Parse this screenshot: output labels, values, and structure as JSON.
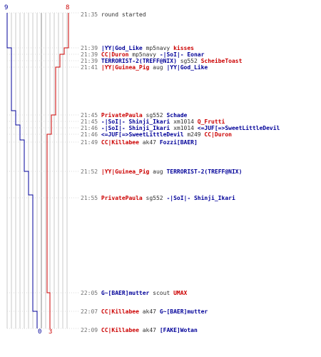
{
  "chart_data": {
    "type": "line",
    "axis": {
      "top_left": "9",
      "top_right": "8",
      "bottom_left": "0",
      "bottom_right": "3"
    },
    "series": [
      {
        "color": "#000099",
        "start": 9,
        "end": 0
      },
      {
        "color": "#cc0000",
        "start": 8,
        "end": 3
      }
    ]
  },
  "events": [
    {
      "time": "21:35",
      "parts": [
        {
          "text": "round started",
          "team": 0
        }
      ]
    },
    {
      "time": "21:39",
      "parts": [
        {
          "text": "|YY|God_Like",
          "team": 2
        },
        {
          "text": " mp5navy ",
          "team": 0
        },
        {
          "text": "kisses",
          "team": 1
        }
      ]
    },
    {
      "time": "21:39",
      "parts": [
        {
          "text": "CC|Duron",
          "team": 1
        },
        {
          "text": " mp5navy ",
          "team": 0
        },
        {
          "text": "-|SoI|- Eonar",
          "team": 2
        }
      ]
    },
    {
      "time": "21:39",
      "parts": [
        {
          "text": "TERRORIST-2(TREFF@NIX)",
          "team": 2
        },
        {
          "text": " sg552 ",
          "team": 0
        },
        {
          "text": "ScheibeToast",
          "team": 1
        }
      ]
    },
    {
      "time": "21:41",
      "parts": [
        {
          "text": "|YY|Guinea_Pig",
          "team": 1
        },
        {
          "text": " aug ",
          "team": 0
        },
        {
          "text": "|YY|God_Like",
          "team": 2
        }
      ]
    },
    {
      "time": "21:45",
      "parts": [
        {
          "text": "PrivatePaula",
          "team": 1
        },
        {
          "text": " sg552 ",
          "team": 0
        },
        {
          "text": "Schade",
          "team": 2
        }
      ]
    },
    {
      "time": "21:45",
      "parts": [
        {
          "text": "-|SoI|- Shinji_Ikari",
          "team": 2
        },
        {
          "text": " xm1014 ",
          "team": 0
        },
        {
          "text": "Q_Frutti",
          "team": 1
        }
      ]
    },
    {
      "time": "21:46",
      "parts": [
        {
          "text": "-|SoI|- Shinji_Ikari",
          "team": 2
        },
        {
          "text": " xm1014 ",
          "team": 0
        },
        {
          "text": "<=JUF[=>SweetLittleDevil",
          "team": 2
        }
      ]
    },
    {
      "time": "21:46",
      "parts": [
        {
          "text": "<=JUF[=>SweetLittleDevil",
          "team": 2
        },
        {
          "text": " m249 ",
          "team": 0
        },
        {
          "text": "CC|Duron",
          "team": 1
        }
      ]
    },
    {
      "time": "21:49",
      "parts": [
        {
          "text": "CC|Killabee",
          "team": 1
        },
        {
          "text": " ak47 ",
          "team": 0
        },
        {
          "text": "Fozzi[BAER]",
          "team": 2
        }
      ]
    },
    {
      "time": "21:52",
      "parts": [
        {
          "text": "|YY|Guinea_Pig",
          "team": 1
        },
        {
          "text": " aug ",
          "team": 0
        },
        {
          "text": "TERRORIST-2(TREFF@NIX)",
          "team": 2
        }
      ]
    },
    {
      "time": "21:55",
      "parts": [
        {
          "text": "PrivatePaula",
          "team": 1
        },
        {
          "text": " sg552 ",
          "team": 0
        },
        {
          "text": "-|SoI|- Shinji_Ikari",
          "team": 2
        }
      ]
    },
    {
      "time": "22:05",
      "parts": [
        {
          "text": "G~[BAER]mutter",
          "team": 2
        },
        {
          "text": " scout ",
          "team": 0
        },
        {
          "text": "UMAX",
          "team": 1
        }
      ]
    },
    {
      "time": "22:07",
      "parts": [
        {
          "text": "CC|Killabee",
          "team": 1
        },
        {
          "text": " ak47 ",
          "team": 0
        },
        {
          "text": "G~[BAER]mutter",
          "team": 2
        }
      ]
    },
    {
      "time": "22:09",
      "parts": [
        {
          "text": "CC|Killabee",
          "team": 1
        },
        {
          "text": " ak47 ",
          "team": 0
        },
        {
          "text": "[FAKE]Wotan",
          "team": 2
        }
      ]
    }
  ]
}
